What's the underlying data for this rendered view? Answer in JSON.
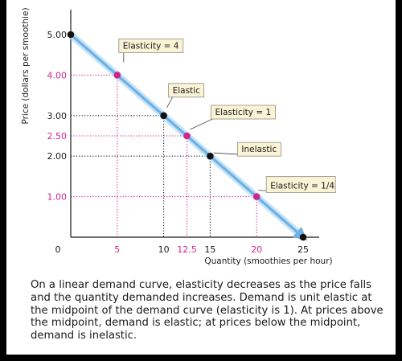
{
  "chart_data": {
    "type": "line",
    "ylabel": "Price (dollars per smoothie)",
    "xlabel": "Quantity (smoothies per hour)",
    "xlim": [
      0,
      25
    ],
    "ylim": [
      0,
      5
    ],
    "x_ticks": [
      {
        "value": 0,
        "label": "0",
        "highlight": false
      },
      {
        "value": 5,
        "label": "5",
        "highlight": true
      },
      {
        "value": 10,
        "label": "10",
        "highlight": false
      },
      {
        "value": 12.5,
        "label": "12.5",
        "highlight": true
      },
      {
        "value": 15,
        "label": "15",
        "highlight": false
      },
      {
        "value": 20,
        "label": "20",
        "highlight": true
      },
      {
        "value": 25,
        "label": "25",
        "highlight": false
      }
    ],
    "y_ticks": [
      {
        "value": 5,
        "label": "5.00",
        "highlight": false
      },
      {
        "value": 4,
        "label": "4.00",
        "highlight": true
      },
      {
        "value": 3,
        "label": "3.00",
        "highlight": false
      },
      {
        "value": 2.5,
        "label": "2.50",
        "highlight": true
      },
      {
        "value": 2,
        "label": "2.00",
        "highlight": false
      },
      {
        "value": 1,
        "label": "1.00",
        "highlight": true
      }
    ],
    "series": [
      {
        "line": [
          [
            0,
            5
          ],
          [
            25,
            0
          ]
        ],
        "points": [
          {
            "x": 0,
            "y": 5,
            "kind": "black"
          },
          {
            "x": 5,
            "y": 4,
            "kind": "magenta"
          },
          {
            "x": 10,
            "y": 3,
            "kind": "black"
          },
          {
            "x": 12.5,
            "y": 2.5,
            "kind": "magenta"
          },
          {
            "x": 15,
            "y": 2,
            "kind": "black"
          },
          {
            "x": 20,
            "y": 1,
            "kind": "magenta"
          },
          {
            "x": 25,
            "y": 0,
            "kind": "black"
          }
        ]
      }
    ],
    "guides": [
      {
        "x": 5,
        "y": 4,
        "color": "magenta"
      },
      {
        "x": 10,
        "y": 3,
        "color": "black"
      },
      {
        "x": 12.5,
        "y": 2.5,
        "color": "magenta"
      },
      {
        "x": 15,
        "y": 2,
        "color": "black"
      },
      {
        "x": 20,
        "y": 1,
        "color": "magenta"
      }
    ],
    "annotations": [
      {
        "text": "Elasticity = 4",
        "x": 5,
        "y": 4,
        "boxed": true
      },
      {
        "text": "Elastic",
        "x": 10,
        "y": 3,
        "boxed": true
      },
      {
        "text": "Elasticity = 1",
        "x": 12.5,
        "y": 2.5,
        "boxed": true
      },
      {
        "text": "Inelastic",
        "x": 15,
        "y": 2,
        "boxed": true
      },
      {
        "text": "Elasticity = 1/4",
        "x": 20,
        "y": 1,
        "boxed": true
      }
    ]
  },
  "colors": {
    "curve": "#6fb3e6",
    "curve_glow": "#bfe0f7",
    "highlight": "#d0268a",
    "label_box": "#fbf3d5",
    "label_border": "#9a9a8a",
    "text": "#1a1a1a"
  },
  "caption": "On a linear demand curve, elasticity decreases as the price falls and the quantity demanded increases. Demand is unit elastic at the midpoint of the demand curve (elasticity is 1). At prices above the midpoint, demand is elastic; at prices below the midpoint, demand is inelastic."
}
